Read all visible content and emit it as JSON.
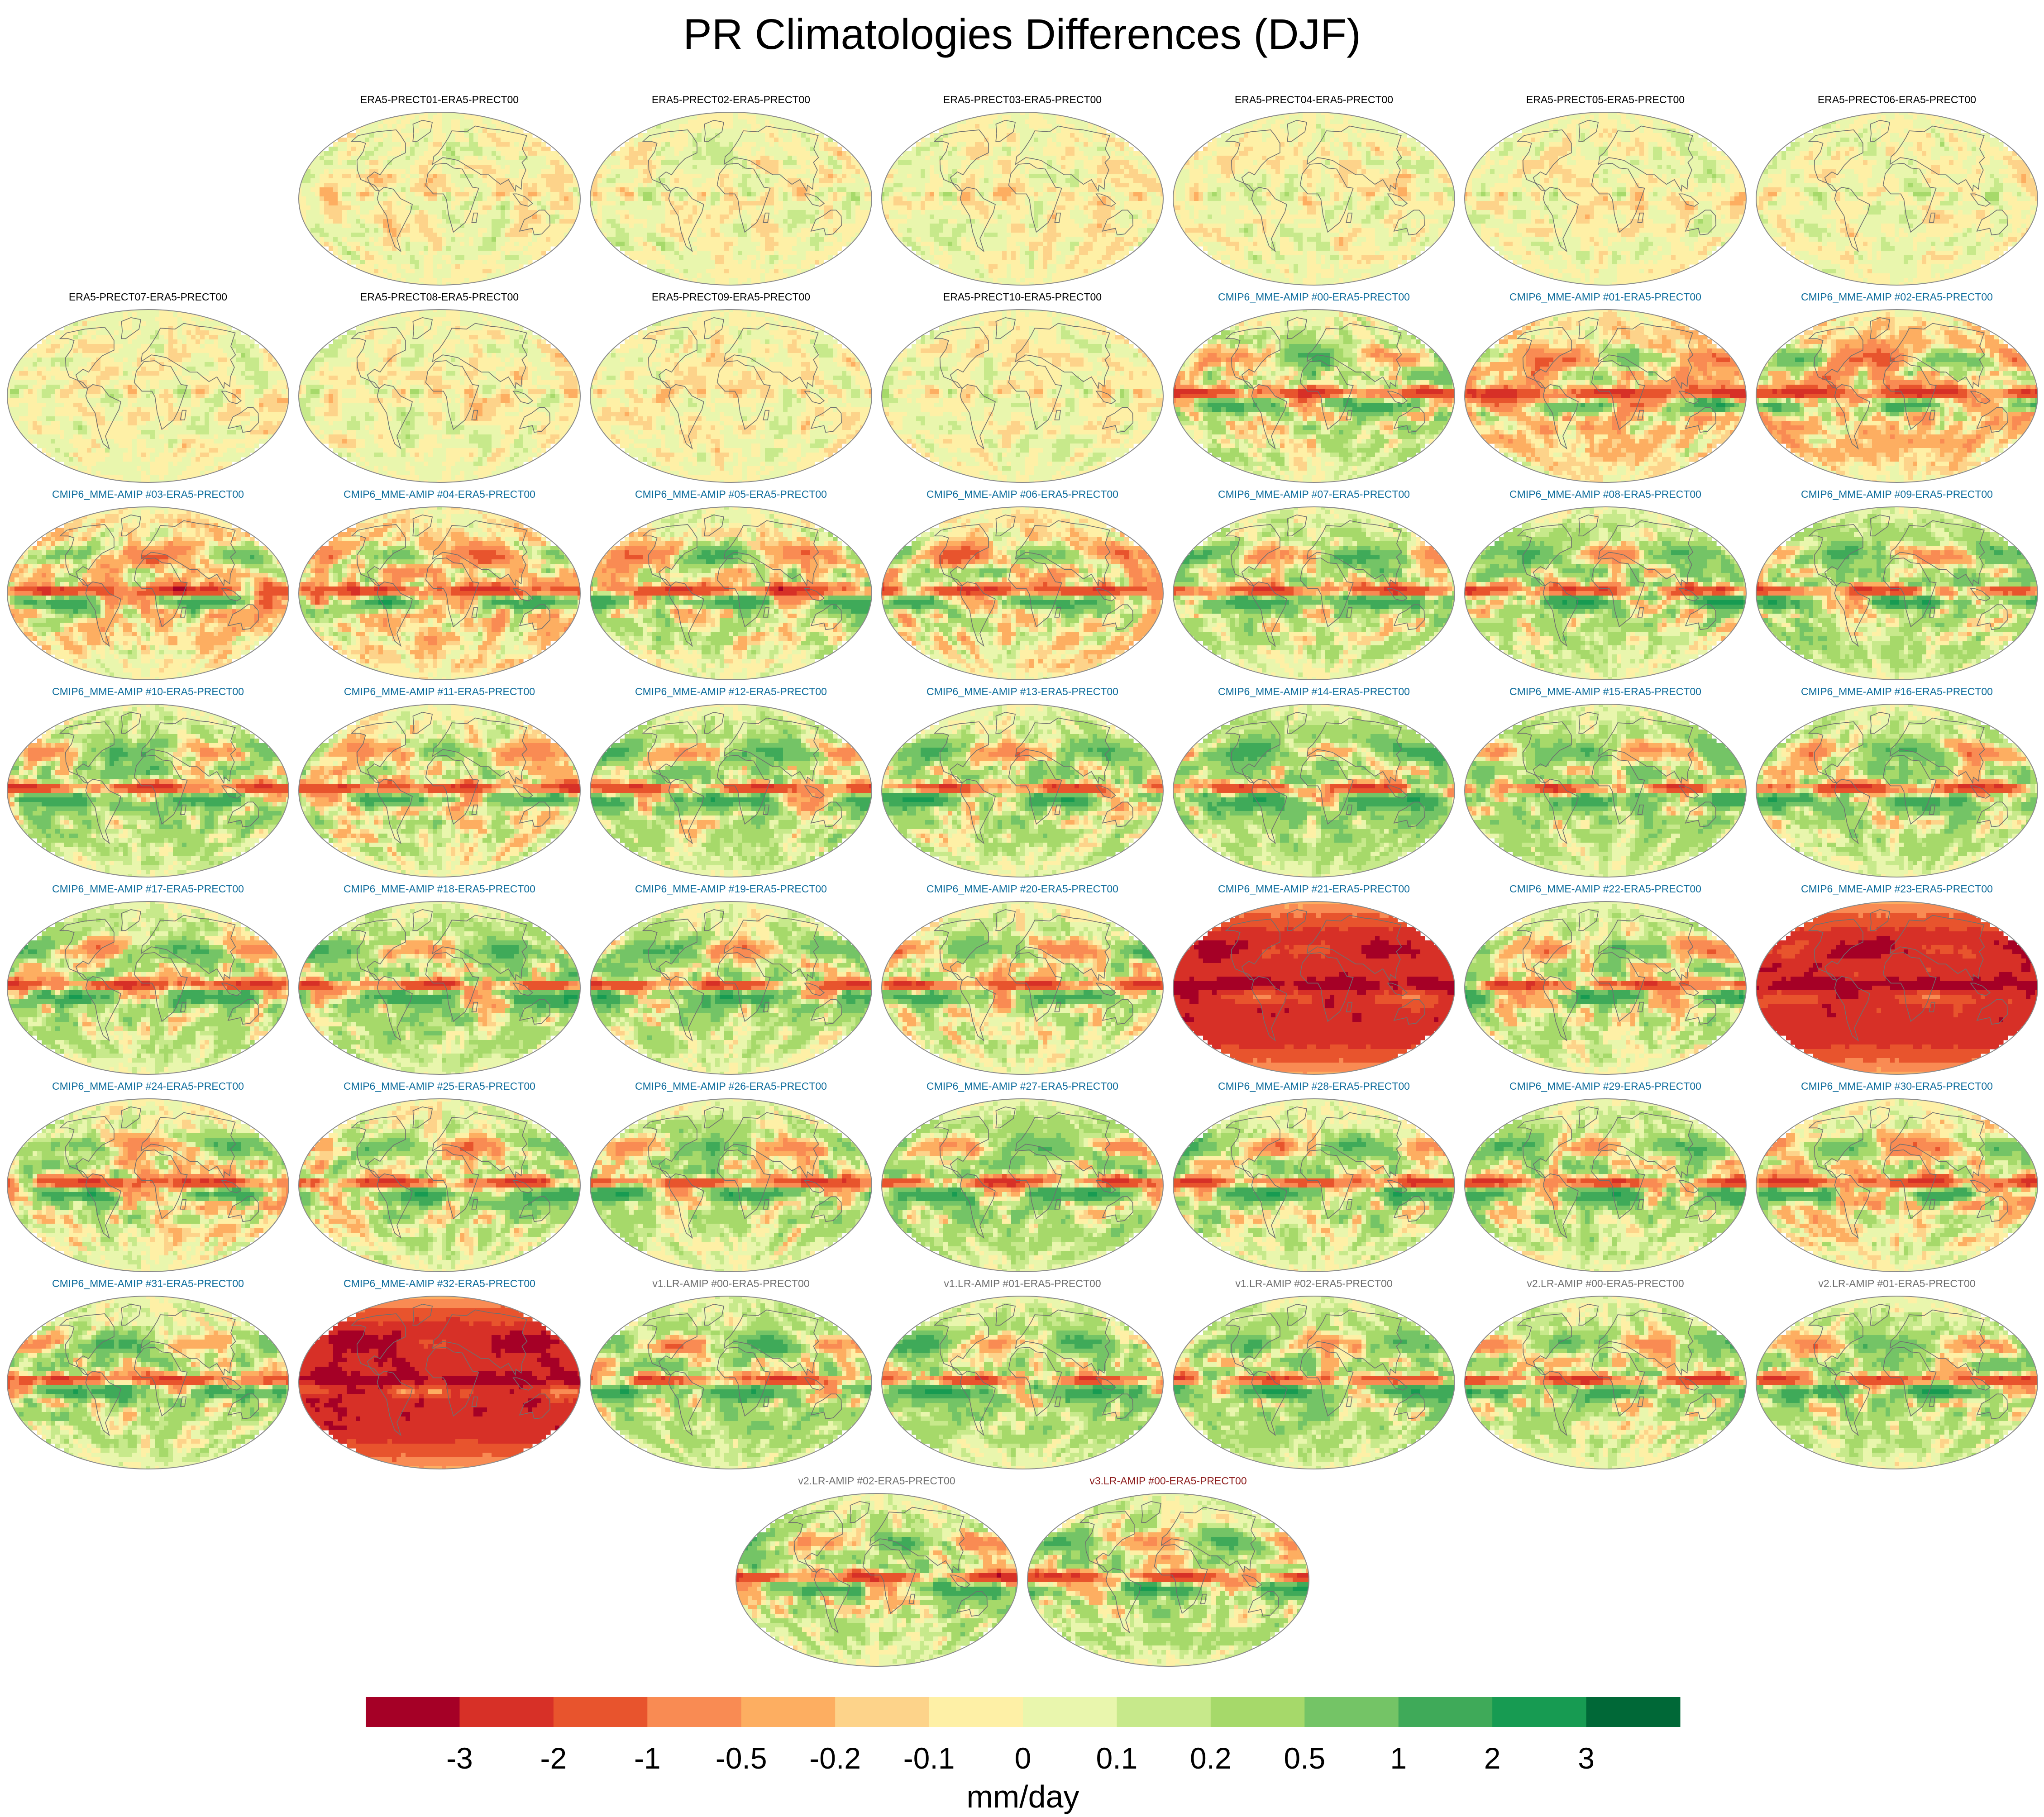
{
  "figure": {
    "title": "PR Climatologies Differences (DJF)"
  },
  "colors": {
    "title_black": "#000000",
    "title_cmip6": "#0b6b9b",
    "title_v1v2": "#6f6f6f",
    "title_v3": "#8b1a1a",
    "map_outline": "#8a8a8a",
    "coast": "#6f6f6f"
  },
  "chart_data": {
    "type": "heatmap",
    "title": "PR Climatologies Differences (DJF)",
    "projection": "Robinson-like global maps",
    "colorbar": {
      "label": "mm/day",
      "ticks": [
        "-3",
        "-2",
        "-1",
        "-0.5",
        "-0.2",
        "-0.1",
        "0",
        "0.1",
        "0.2",
        "0.5",
        "1",
        "2",
        "3"
      ],
      "colors": [
        "#a50026",
        "#d73027",
        "#e8542d",
        "#f98b53",
        "#fdae61",
        "#fdd38a",
        "#fef0a6",
        "#e9f6ad",
        "#c7e98b",
        "#a6d96a",
        "#74c466",
        "#3faa59",
        "#179b52",
        "#006837"
      ]
    },
    "panels": [
      {
        "title": "ERA5-PRECT01-ERA5-PRECT00",
        "group": "era5",
        "intensity": 0.12,
        "wet_bias": 0.0
      },
      {
        "title": "ERA5-PRECT02-ERA5-PRECT00",
        "group": "era5",
        "intensity": 0.12,
        "wet_bias": 0.0
      },
      {
        "title": "ERA5-PRECT03-ERA5-PRECT00",
        "group": "era5",
        "intensity": 0.12,
        "wet_bias": 0.0
      },
      {
        "title": "ERA5-PRECT04-ERA5-PRECT00",
        "group": "era5",
        "intensity": 0.12,
        "wet_bias": 0.0
      },
      {
        "title": "ERA5-PRECT05-ERA5-PRECT00",
        "group": "era5",
        "intensity": 0.12,
        "wet_bias": 0.0
      },
      {
        "title": "ERA5-PRECT06-ERA5-PRECT00",
        "group": "era5",
        "intensity": 0.12,
        "wet_bias": 0.0
      },
      {
        "title": "ERA5-PRECT07-ERA5-PRECT00",
        "group": "era5",
        "intensity": 0.12,
        "wet_bias": 0.0
      },
      {
        "title": "ERA5-PRECT08-ERA5-PRECT00",
        "group": "era5",
        "intensity": 0.12,
        "wet_bias": 0.0
      },
      {
        "title": "ERA5-PRECT09-ERA5-PRECT00",
        "group": "era5",
        "intensity": 0.12,
        "wet_bias": 0.0
      },
      {
        "title": "ERA5-PRECT10-ERA5-PRECT00",
        "group": "era5",
        "intensity": 0.12,
        "wet_bias": 0.0
      },
      {
        "title": "CMIP6_MME-AMIP  #00-ERA5-PRECT00",
        "group": "cmip6",
        "intensity": 1.0,
        "wet_bias": 0.1
      },
      {
        "title": "CMIP6_MME-AMIP  #01-ERA5-PRECT00",
        "group": "cmip6",
        "intensity": 1.0,
        "wet_bias": -0.1
      },
      {
        "title": "CMIP6_MME-AMIP  #02-ERA5-PRECT00",
        "group": "cmip6",
        "intensity": 1.0,
        "wet_bias": -0.15
      },
      {
        "title": "CMIP6_MME-AMIP  #03-ERA5-PRECT00",
        "group": "cmip6",
        "intensity": 1.0,
        "wet_bias": -0.05
      },
      {
        "title": "CMIP6_MME-AMIP  #04-ERA5-PRECT00",
        "group": "cmip6",
        "intensity": 1.0,
        "wet_bias": -0.1
      },
      {
        "title": "CMIP6_MME-AMIP  #05-ERA5-PRECT00",
        "group": "cmip6",
        "intensity": 1.0,
        "wet_bias": 0.05
      },
      {
        "title": "CMIP6_MME-AMIP  #06-ERA5-PRECT00",
        "group": "cmip6",
        "intensity": 1.0,
        "wet_bias": -0.05
      },
      {
        "title": "CMIP6_MME-AMIP  #07-ERA5-PRECT00",
        "group": "cmip6",
        "intensity": 1.0,
        "wet_bias": 0.1
      },
      {
        "title": "CMIP6_MME-AMIP  #08-ERA5-PRECT00",
        "group": "cmip6",
        "intensity": 1.0,
        "wet_bias": 0.1
      },
      {
        "title": "CMIP6_MME-AMIP  #09-ERA5-PRECT00",
        "group": "cmip6",
        "intensity": 1.0,
        "wet_bias": 0.15
      },
      {
        "title": "CMIP6_MME-AMIP  #10-ERA5-PRECT00",
        "group": "cmip6",
        "intensity": 1.0,
        "wet_bias": 0.15
      },
      {
        "title": "CMIP6_MME-AMIP  #11-ERA5-PRECT00",
        "group": "cmip6",
        "intensity": 1.0,
        "wet_bias": 0.0
      },
      {
        "title": "CMIP6_MME-AMIP  #12-ERA5-PRECT00",
        "group": "cmip6",
        "intensity": 1.0,
        "wet_bias": 0.15
      },
      {
        "title": "CMIP6_MME-AMIP  #13-ERA5-PRECT00",
        "group": "cmip6",
        "intensity": 1.0,
        "wet_bias": 0.1
      },
      {
        "title": "CMIP6_MME-AMIP  #14-ERA5-PRECT00",
        "group": "cmip6",
        "intensity": 1.0,
        "wet_bias": 0.2
      },
      {
        "title": "CMIP6_MME-AMIP  #15-ERA5-PRECT00",
        "group": "cmip6",
        "intensity": 1.0,
        "wet_bias": 0.15
      },
      {
        "title": "CMIP6_MME-AMIP  #16-ERA5-PRECT00",
        "group": "cmip6",
        "intensity": 1.0,
        "wet_bias": 0.15
      },
      {
        "title": "CMIP6_MME-AMIP  #17-ERA5-PRECT00",
        "group": "cmip6",
        "intensity": 1.0,
        "wet_bias": 0.1
      },
      {
        "title": "CMIP6_MME-AMIP  #18-ERA5-PRECT00",
        "group": "cmip6",
        "intensity": 1.0,
        "wet_bias": 0.15
      },
      {
        "title": "CMIP6_MME-AMIP  #19-ERA5-PRECT00",
        "group": "cmip6",
        "intensity": 1.0,
        "wet_bias": 0.1
      },
      {
        "title": "CMIP6_MME-AMIP  #20-ERA5-PRECT00",
        "group": "cmip6",
        "intensity": 1.0,
        "wet_bias": 0.05
      },
      {
        "title": "CMIP6_MME-AMIP  #21-ERA5-PRECT00",
        "group": "cmip6",
        "intensity": 1.0,
        "wet_bias": -1.6
      },
      {
        "title": "CMIP6_MME-AMIP  #22-ERA5-PRECT00",
        "group": "cmip6",
        "intensity": 1.0,
        "wet_bias": 0.1
      },
      {
        "title": "CMIP6_MME-AMIP  #23-ERA5-PRECT00",
        "group": "cmip6",
        "intensity": 1.0,
        "wet_bias": -1.6
      },
      {
        "title": "CMIP6_MME-AMIP  #24-ERA5-PRECT00",
        "group": "cmip6",
        "intensity": 1.0,
        "wet_bias": 0.0
      },
      {
        "title": "CMIP6_MME-AMIP  #25-ERA5-PRECT00",
        "group": "cmip6",
        "intensity": 1.0,
        "wet_bias": 0.05
      },
      {
        "title": "CMIP6_MME-AMIP  #26-ERA5-PRECT00",
        "group": "cmip6",
        "intensity": 1.0,
        "wet_bias": 0.1
      },
      {
        "title": "CMIP6_MME-AMIP  #27-ERA5-PRECT00",
        "group": "cmip6",
        "intensity": 1.0,
        "wet_bias": 0.15
      },
      {
        "title": "CMIP6_MME-AMIP  #28-ERA5-PRECT00",
        "group": "cmip6",
        "intensity": 1.0,
        "wet_bias": 0.1
      },
      {
        "title": "CMIP6_MME-AMIP  #29-ERA5-PRECT00",
        "group": "cmip6",
        "intensity": 1.0,
        "wet_bias": 0.1
      },
      {
        "title": "CMIP6_MME-AMIP  #30-ERA5-PRECT00",
        "group": "cmip6",
        "intensity": 1.0,
        "wet_bias": 0.0
      },
      {
        "title": "CMIP6_MME-AMIP  #31-ERA5-PRECT00",
        "group": "cmip6",
        "intensity": 1.0,
        "wet_bias": 0.1
      },
      {
        "title": "CMIP6_MME-AMIP  #32-ERA5-PRECT00",
        "group": "cmip6",
        "intensity": 1.0,
        "wet_bias": -1.7
      },
      {
        "title": "v1.LR-AMIP  #00-ERA5-PRECT00",
        "group": "v1v2",
        "intensity": 1.0,
        "wet_bias": 0.15
      },
      {
        "title": "v1.LR-AMIP  #01-ERA5-PRECT00",
        "group": "v1v2",
        "intensity": 1.0,
        "wet_bias": 0.15
      },
      {
        "title": "v1.LR-AMIP  #02-ERA5-PRECT00",
        "group": "v1v2",
        "intensity": 1.0,
        "wet_bias": 0.15
      },
      {
        "title": "v2.LR-AMIP  #00-ERA5-PRECT00",
        "group": "v1v2",
        "intensity": 1.0,
        "wet_bias": 0.1
      },
      {
        "title": "v2.LR-AMIP  #01-ERA5-PRECT00",
        "group": "v1v2",
        "intensity": 1.0,
        "wet_bias": 0.1
      },
      {
        "title": "v2.LR-AMIP  #02-ERA5-PRECT00",
        "group": "v1v2",
        "intensity": 1.0,
        "wet_bias": 0.1
      },
      {
        "title": "v3.LR-AMIP  #00-ERA5-PRECT00",
        "group": "v3",
        "intensity": 1.0,
        "wet_bias": 0.1
      }
    ]
  }
}
